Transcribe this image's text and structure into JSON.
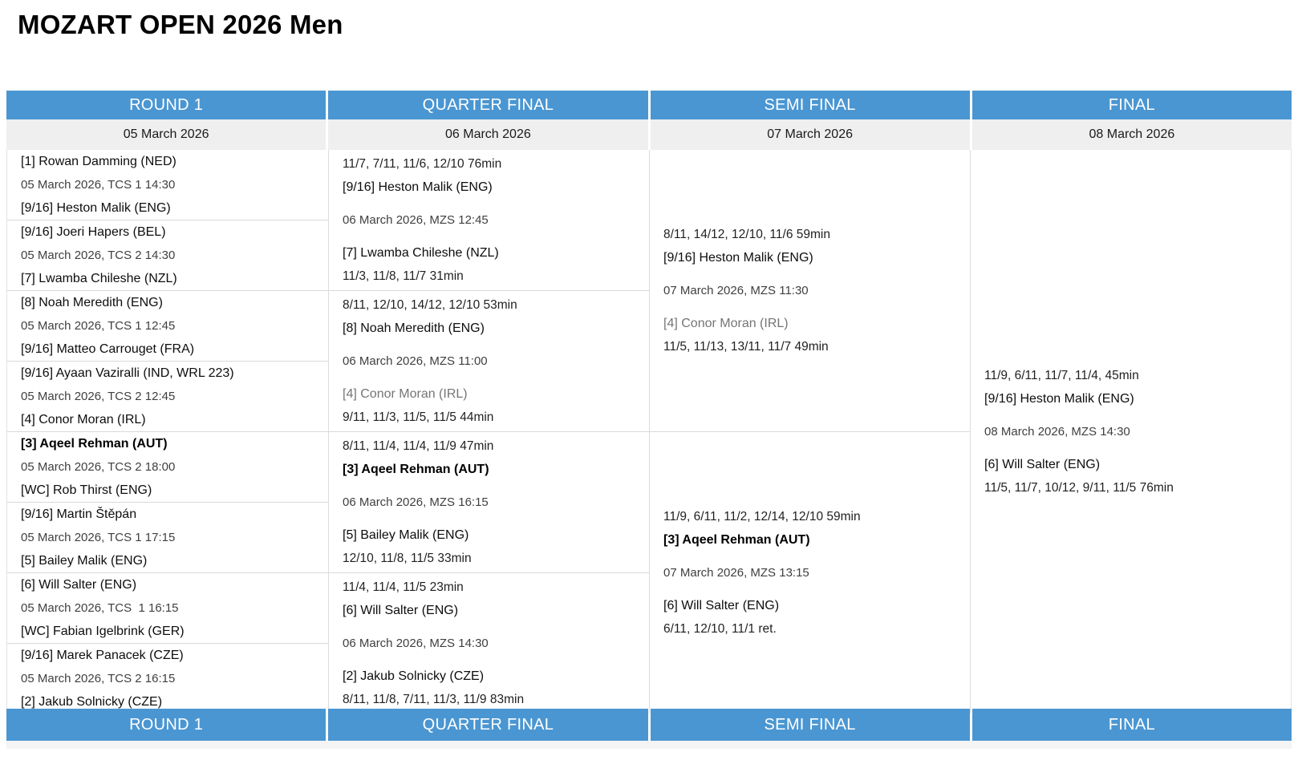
{
  "title": "MOZART OPEN 2026 Men",
  "colors": {
    "header_blue": "#4A96D2",
    "date_row_bg": "#EFEFEF",
    "grid_line": "#D9D9D9",
    "loser_gray": "#757575"
  },
  "columns": [
    {
      "header": "ROUND 1",
      "date": "05 March 2026"
    },
    {
      "header": "QUARTER FINAL",
      "date": "06 March 2026"
    },
    {
      "header": "SEMI FINAL",
      "date": "07 March 2026"
    },
    {
      "header": "FINAL",
      "date": "08 March 2026"
    }
  ],
  "round1": {
    "matches": [
      {
        "p1": "[1] Rowan Damming (NED)",
        "schedule": "05 March 2026, TCS 1 14:30",
        "p2": "[9/16] Heston Malik (ENG)"
      },
      {
        "p1": "[9/16] Joeri Hapers (BEL)",
        "schedule": "05 March 2026, TCS 2 14:30",
        "p2": "[7] Lwamba Chileshe (NZL)"
      },
      {
        "p1": "[8] Noah Meredith (ENG)",
        "schedule": "05 March 2026, TCS 1 12:45",
        "p2": "[9/16] Matteo Carrouget (FRA)"
      },
      {
        "p1": "[9/16] Ayaan Vaziralli (IND, WRL 223)",
        "schedule": "05 March 2026, TCS 2 12:45",
        "p2": "[4] Conor Moran (IRL)"
      },
      {
        "p1": "[3] Aqeel Rehman (AUT)",
        "schedule": "05 March 2026, TCS 2 18:00",
        "p2": "[WC] Rob Thirst (ENG)"
      },
      {
        "p1": "[9/16] Martin Štěpán",
        "schedule": "05 March 2026, TCS 1 17:15",
        "p2": "[5] Bailey Malik (ENG)"
      },
      {
        "p1": "[6] Will Salter (ENG)",
        "schedule": "05 March 2026, TCS  1 16:15",
        "p2": "[WC] Fabian Igelbrink (GER)"
      },
      {
        "p1": "[9/16] Marek Panacek (CZE)",
        "schedule": "05 March 2026, TCS 2 16:15",
        "p2": "[2] Jakub Solnicky (CZE)"
      }
    ]
  },
  "quarterfinal": {
    "matches": [
      {
        "score_top": "11/7, 7/11, 11/6, 12/10 76min",
        "p1": "[9/16] Heston Malik (ENG)",
        "schedule": "06 March 2026, MZS 12:45",
        "p2": "[7] Lwamba Chileshe (NZL)",
        "score_bottom": "11/3, 11/8, 11/7 31min"
      },
      {
        "score_top": "8/11, 12/10, 14/12, 12/10 53min",
        "p1": "[8] Noah Meredith (ENG)",
        "schedule": "06 March 2026, MZS 11:00",
        "p2": "[4] Conor Moran (IRL)",
        "score_bottom": "9/11, 11/3, 11/5, 11/5 44min"
      },
      {
        "score_top": "8/11, 11/4, 11/4, 11/9 47min",
        "p1": "[3] Aqeel Rehman (AUT)",
        "schedule": "06 March 2026, MZS 16:15",
        "p2": "[5] Bailey Malik (ENG)",
        "score_bottom": "12/10, 11/8, 11/5 33min"
      },
      {
        "score_top": "11/4, 11/4, 11/5 23min",
        "p1": "[6] Will Salter (ENG)",
        "schedule": "06 March 2026, MZS 14:30",
        "p2": "[2] Jakub Solnicky (CZE)",
        "score_bottom": "8/11, 11/8, 7/11, 11/3, 11/9 83min"
      }
    ]
  },
  "semifinal": {
    "matches": [
      {
        "score_top": "8/11, 14/12, 12/10, 11/6 59min",
        "p1": "[9/16] Heston Malik (ENG)",
        "schedule": "07 March 2026, MZS 11:30",
        "p2": "[4] Conor Moran (IRL)",
        "score_bottom": "11/5, 11/13, 13/11, 11/7 49min"
      },
      {
        "score_top": "11/9, 6/11, 11/2, 12/14, 12/10 59min",
        "p1": "[3] Aqeel Rehman (AUT)",
        "schedule": "07 March 2026, MZS 13:15",
        "p2": "[6] Will Salter (ENG)",
        "score_bottom": "6/11, 12/10, 11/1 ret."
      }
    ]
  },
  "final": {
    "matches": [
      {
        "score_top": "11/9, 6/11, 11/7, 11/4, 45min",
        "p1": "[9/16] Heston Malik (ENG)",
        "schedule": "08 March 2026, MZS 14:30",
        "p2": "[6] Will Salter (ENG)",
        "score_bottom": "11/5, 11/7, 10/12, 9/11, 11/5 76min"
      }
    ]
  }
}
